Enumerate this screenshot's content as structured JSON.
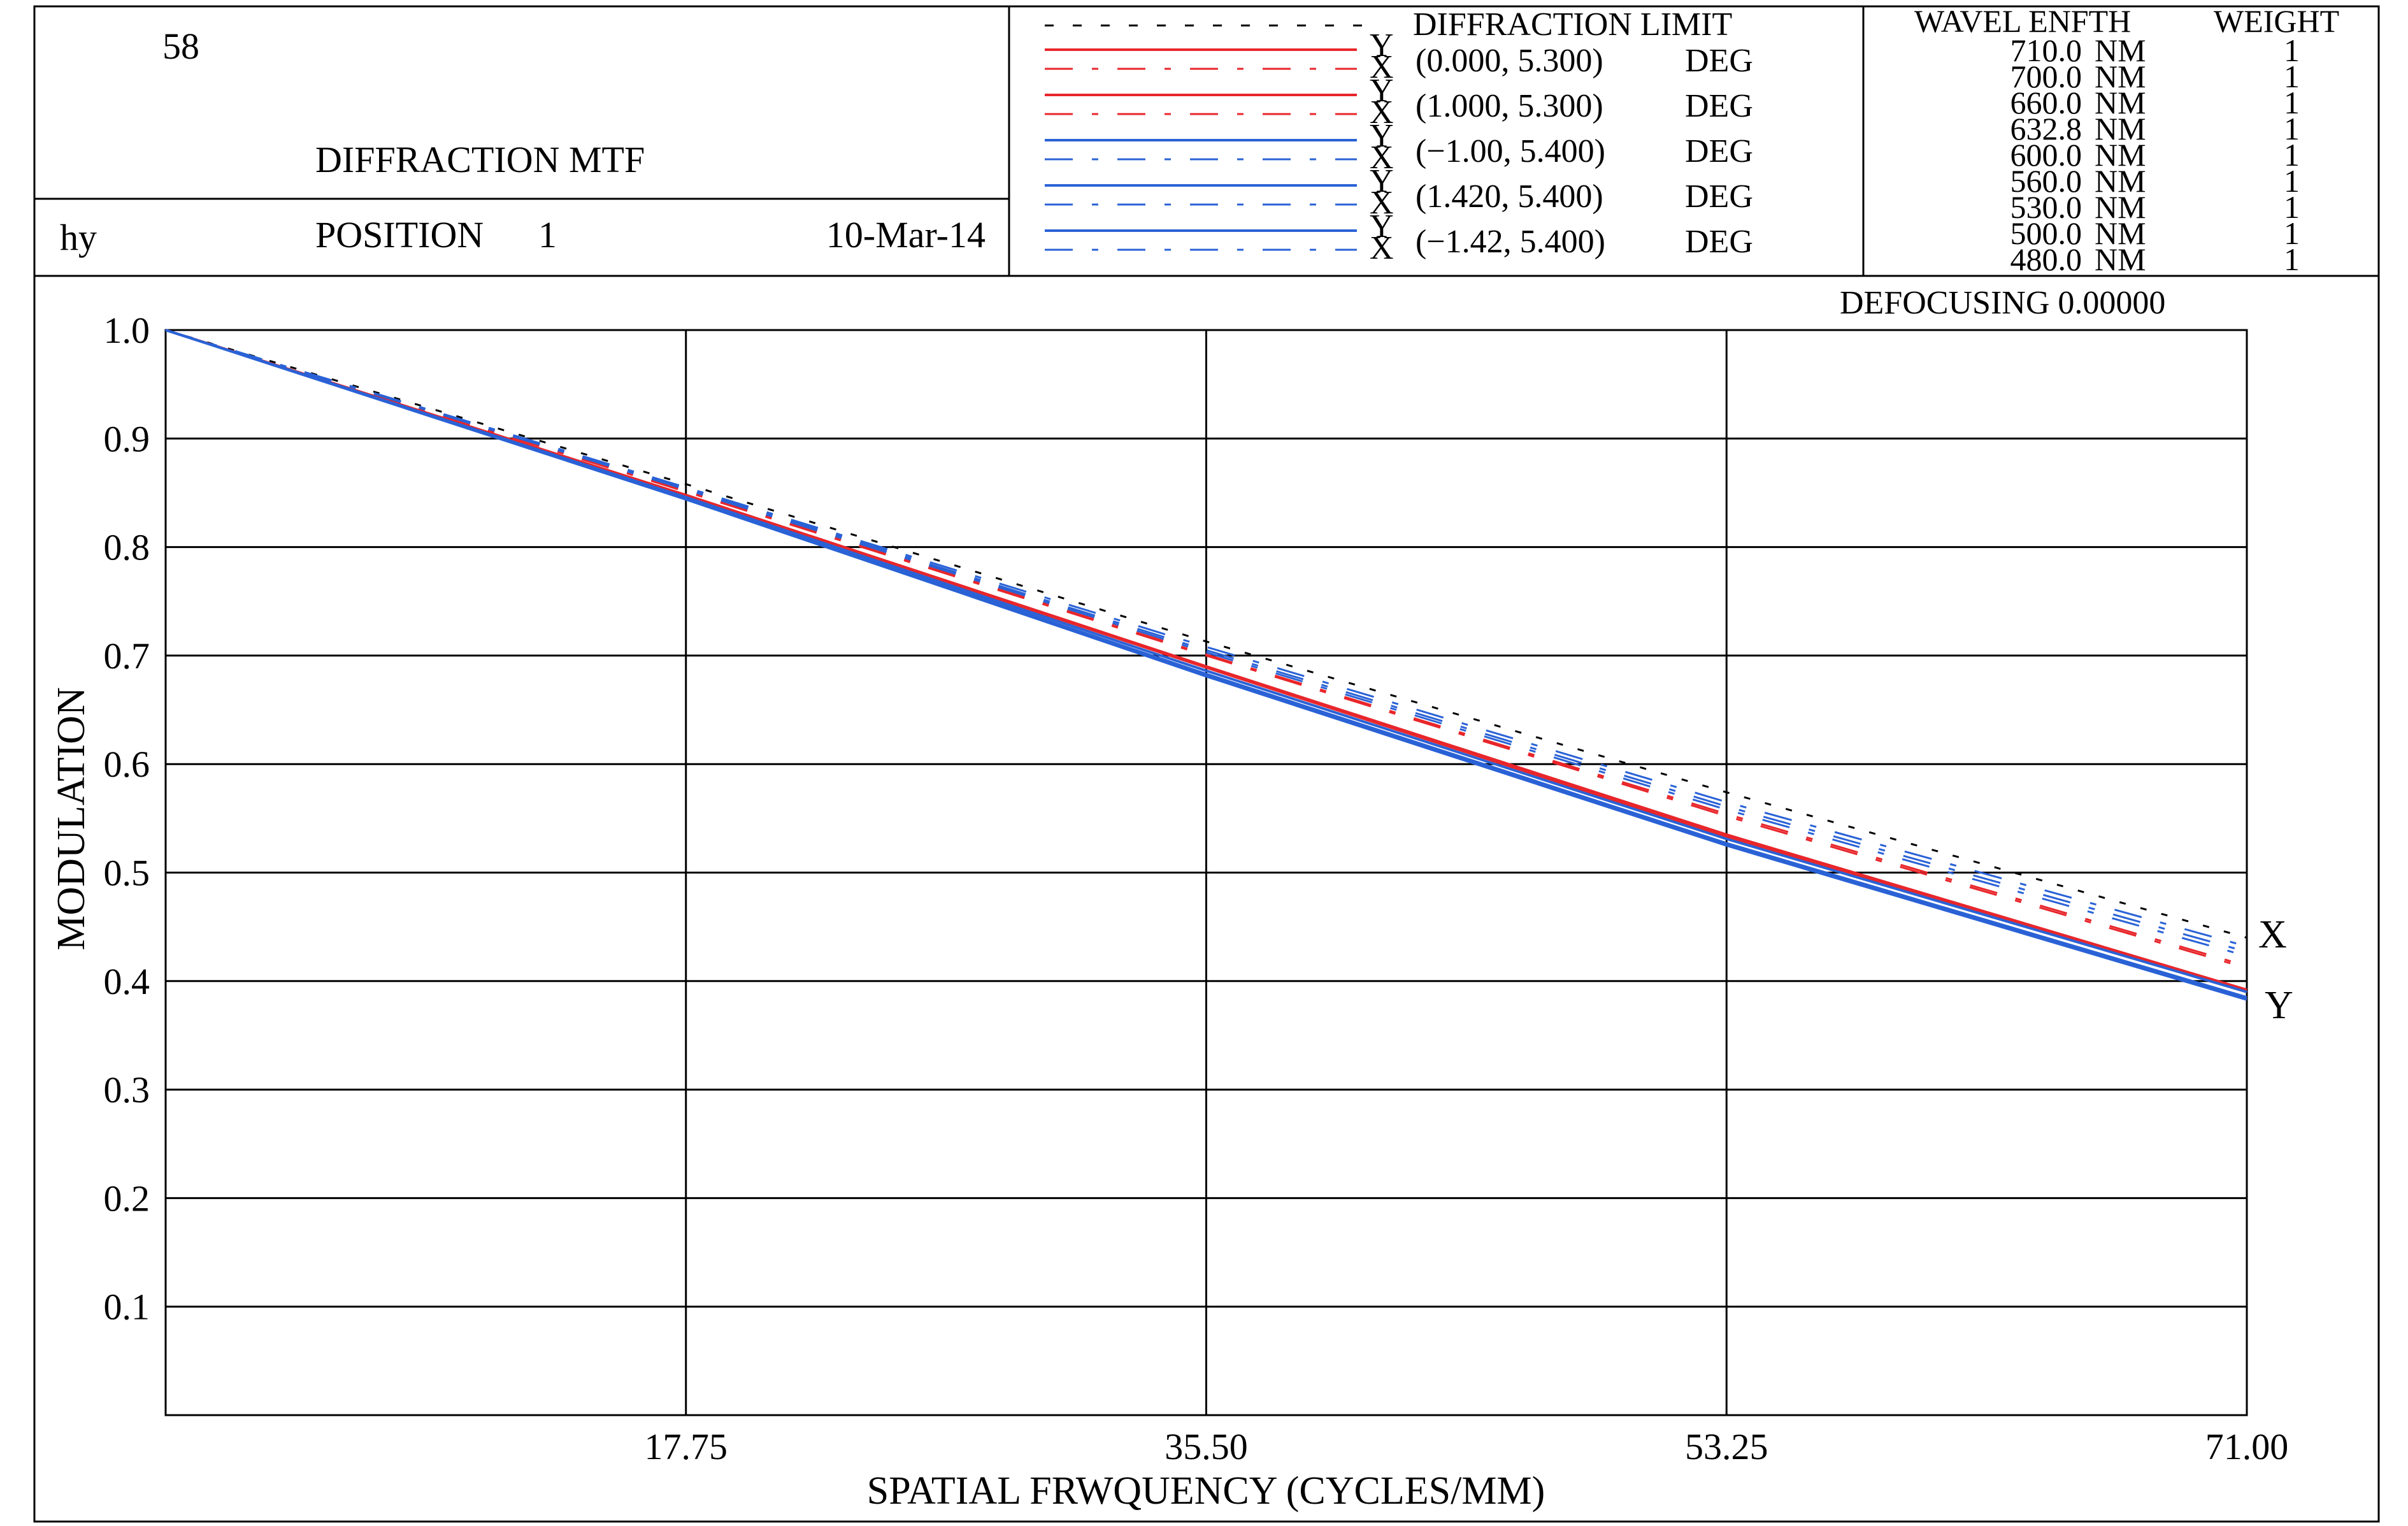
{
  "header": {
    "plot_number": "58",
    "title": "DIFFRACTION MTF",
    "field_label": "hy",
    "position_label": "POSITION",
    "position_value": "1",
    "date": "10-Mar-14"
  },
  "legend": {
    "diffraction_limit_label": "DIFFRACTION  LIMIT",
    "entries": [
      {
        "coords": "(0.000, 5.300)",
        "unit": "DEG",
        "color": "#e8262b",
        "y_label": "Y",
        "x_label": "X"
      },
      {
        "coords": "(1.000, 5.300)",
        "unit": "DEG",
        "color": "#e8262b",
        "y_label": "Y",
        "x_label": "X"
      },
      {
        "coords": "(−1.00, 5.400)",
        "unit": "DEG",
        "color": "#2a62d6",
        "y_label": "Y",
        "x_label": "X"
      },
      {
        "coords": "(1.420, 5.400)",
        "unit": "DEG",
        "color": "#2a62d6",
        "y_label": "Y",
        "x_label": "X"
      },
      {
        "coords": "(−1.42, 5.400)",
        "unit": "DEG",
        "color": "#2a62d6",
        "y_label": "Y",
        "x_label": "X"
      }
    ]
  },
  "wavelengths": {
    "header_wavelength": "WAVEL ENFTH",
    "header_weight": "WEIGHT",
    "rows": [
      {
        "value": "710.0",
        "unit": "NM",
        "weight": "1"
      },
      {
        "value": "700.0",
        "unit": "NM",
        "weight": "1"
      },
      {
        "value": "660.0",
        "unit": "NM",
        "weight": "1"
      },
      {
        "value": "632.8",
        "unit": "NM",
        "weight": "1"
      },
      {
        "value": "600.0",
        "unit": "NM",
        "weight": "1"
      },
      {
        "value": "560.0",
        "unit": "NM",
        "weight": "1"
      },
      {
        "value": "530.0",
        "unit": "NM",
        "weight": "1"
      },
      {
        "value": "500.0",
        "unit": "NM",
        "weight": "1"
      },
      {
        "value": "480.0",
        "unit": "NM",
        "weight": "1"
      }
    ]
  },
  "defocusing": "DEFOCUSING  0.00000",
  "chart_data": {
    "type": "line",
    "title": "DIFFRACTION MTF",
    "xlabel": "SPATIAL FRWQUENCY (CYCLES/MM)",
    "ylabel": "MODULATION",
    "xlim": [
      0,
      71.0
    ],
    "ylim": [
      0,
      1.0
    ],
    "x_ticks": [
      17.75,
      35.5,
      53.25,
      71.0
    ],
    "x_tick_labels": [
      "17.75",
      "35.50",
      "53.25",
      "71.00"
    ],
    "y_ticks": [
      0.1,
      0.2,
      0.3,
      0.4,
      0.5,
      0.6,
      0.7,
      0.8,
      0.9,
      1.0
    ],
    "y_tick_labels": [
      "0.1",
      "0.2",
      "0.3",
      "0.4",
      "0.5",
      "0.6",
      "0.7",
      "0.8",
      "0.9",
      "1.0"
    ],
    "grid": true,
    "end_labels": {
      "upper": "X",
      "lower": "Y"
    },
    "series": [
      {
        "style": "diffraction-limit",
        "color": "#000000",
        "x": [
          0,
          17.75,
          35.5,
          53.25,
          71.0
        ],
        "values": [
          1.0,
          0.858,
          0.713,
          0.574,
          0.44
        ]
      },
      {
        "style": "solid",
        "color": "#e8262b",
        "x": [
          0,
          17.75,
          35.5,
          53.25,
          71.0
        ],
        "values": [
          1.0,
          0.848,
          0.69,
          0.535,
          0.392
        ]
      },
      {
        "style": "dashdot",
        "color": "#e8262b",
        "x": [
          0,
          17.75,
          35.5,
          53.25,
          71.0
        ],
        "values": [
          1.0,
          0.852,
          0.701,
          0.554,
          0.414
        ]
      },
      {
        "style": "solid",
        "color": "#e8262b",
        "x": [
          0,
          17.75,
          35.5,
          53.25,
          71.0
        ],
        "values": [
          1.0,
          0.847,
          0.689,
          0.533,
          0.39
        ]
      },
      {
        "style": "dashdot",
        "color": "#e8262b",
        "x": [
          0,
          17.75,
          35.5,
          53.25,
          71.0
        ],
        "values": [
          1.0,
          0.851,
          0.7,
          0.552,
          0.412
        ]
      },
      {
        "style": "solid",
        "color": "#2a62d6",
        "x": [
          0,
          17.75,
          35.5,
          53.25,
          71.0
        ],
        "values": [
          1.0,
          0.845,
          0.683,
          0.527,
          0.385
        ]
      },
      {
        "style": "dashdot",
        "color": "#2a62d6",
        "x": [
          0,
          17.75,
          35.5,
          53.25,
          71.0
        ],
        "values": [
          1.0,
          0.855,
          0.708,
          0.565,
          0.432
        ]
      },
      {
        "style": "solid",
        "color": "#2a62d6",
        "x": [
          0,
          17.75,
          35.5,
          53.25,
          71.0
        ],
        "values": [
          1.0,
          0.846,
          0.686,
          0.531,
          0.39
        ]
      },
      {
        "style": "dashdot",
        "color": "#2a62d6",
        "x": [
          0,
          17.75,
          35.5,
          53.25,
          71.0
        ],
        "values": [
          1.0,
          0.854,
          0.705,
          0.561,
          0.427
        ]
      },
      {
        "style": "solid",
        "color": "#2a62d6",
        "x": [
          0,
          17.75,
          35.5,
          53.25,
          71.0
        ],
        "values": [
          1.0,
          0.844,
          0.681,
          0.525,
          0.383
        ]
      },
      {
        "style": "dashdot",
        "color": "#2a62d6",
        "x": [
          0,
          17.75,
          35.5,
          53.25,
          71.0
        ],
        "values": [
          1.0,
          0.853,
          0.703,
          0.558,
          0.423
        ]
      }
    ]
  }
}
